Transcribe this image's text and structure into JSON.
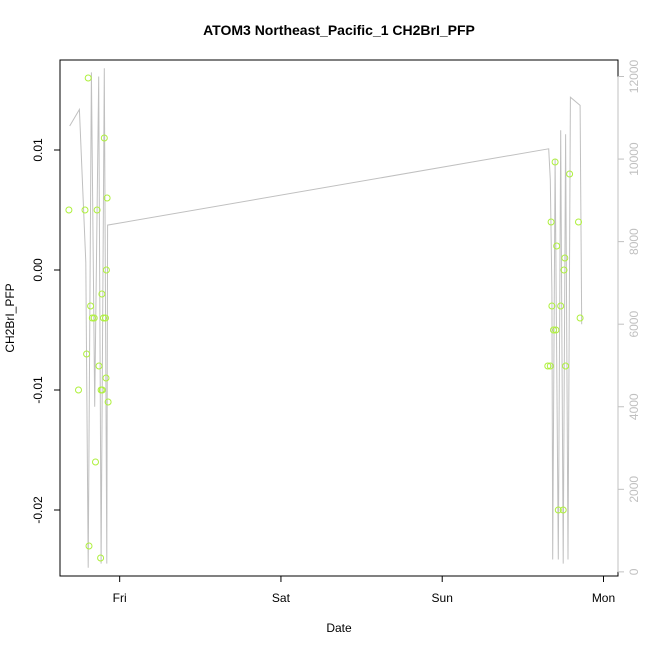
{
  "chart_data": {
    "type": "scatter",
    "title": "ATOM3 Northeast_Pacific_1 CH2BrI_PFP",
    "xlabel": "Date",
    "ylabel": "CH2BrI_PFP",
    "x_ticks": [
      "Fri",
      "Sat",
      "Sun",
      "Mon"
    ],
    "y_ticks": [
      "-0.02",
      "-0.01",
      "0.00",
      "0.01"
    ],
    "y2_ticks": [
      "0",
      "2000",
      "4000",
      "6000",
      "8000",
      "10000",
      "12000"
    ],
    "xlim_days": [
      -0.37,
      3.09
    ],
    "ylim": [
      -0.0255,
      0.0175
    ],
    "y2lim": [
      -100,
      12400
    ],
    "points_color": "#aef03c",
    "altitude_line_color": "#c0c0c0",
    "series": [
      {
        "name": "CH2BrI_PFP",
        "points": [
          {
            "x": -0.315,
            "y": 0.005
          },
          {
            "x": -0.255,
            "y": -0.01
          },
          {
            "x": -0.215,
            "y": 0.005
          },
          {
            "x": -0.205,
            "y": -0.007
          },
          {
            "x": -0.195,
            "y": 0.016
          },
          {
            "x": -0.19,
            "y": -0.023
          },
          {
            "x": -0.18,
            "y": -0.003
          },
          {
            "x": -0.17,
            "y": -0.004
          },
          {
            "x": -0.158,
            "y": -0.004
          },
          {
            "x": -0.15,
            "y": -0.016
          },
          {
            "x": -0.14,
            "y": 0.005
          },
          {
            "x": -0.128,
            "y": -0.008
          },
          {
            "x": -0.118,
            "y": -0.024
          },
          {
            "x": -0.115,
            "y": -0.01
          },
          {
            "x": -0.11,
            "y": -0.002
          },
          {
            "x": -0.108,
            "y": -0.01
          },
          {
            "x": -0.1,
            "y": -0.004
          },
          {
            "x": -0.095,
            "y": 0.011
          },
          {
            "x": -0.088,
            "y": -0.004
          },
          {
            "x": -0.085,
            "y": -0.009
          },
          {
            "x": -0.082,
            "y": 0.0
          },
          {
            "x": -0.078,
            "y": 0.006
          },
          {
            "x": -0.072,
            "y": -0.011
          },
          {
            "x": 2.655,
            "y": -0.008
          },
          {
            "x": 2.67,
            "y": -0.008
          },
          {
            "x": 2.675,
            "y": 0.004
          },
          {
            "x": 2.68,
            "y": -0.003
          },
          {
            "x": 2.69,
            "y": -0.005
          },
          {
            "x": 2.7,
            "y": 0.009
          },
          {
            "x": 2.705,
            "y": -0.005
          },
          {
            "x": 2.71,
            "y": 0.002
          },
          {
            "x": 2.72,
            "y": -0.02
          },
          {
            "x": 2.735,
            "y": -0.003
          },
          {
            "x": 2.75,
            "y": -0.02
          },
          {
            "x": 2.755,
            "y": 0.0
          },
          {
            "x": 2.76,
            "y": 0.001
          },
          {
            "x": 2.765,
            "y": -0.008
          },
          {
            "x": 2.79,
            "y": 0.008
          },
          {
            "x": 2.845,
            "y": 0.004
          },
          {
            "x": 2.855,
            "y": -0.004
          }
        ]
      },
      {
        "name": "altitude",
        "axis": "right",
        "points": [
          {
            "x": -0.31,
            "y": 10800
          },
          {
            "x": -0.25,
            "y": 11200
          },
          {
            "x": -0.21,
            "y": 7500
          },
          {
            "x": -0.195,
            "y": 100
          },
          {
            "x": -0.175,
            "y": 12100
          },
          {
            "x": -0.155,
            "y": 4000
          },
          {
            "x": -0.13,
            "y": 12000
          },
          {
            "x": -0.115,
            "y": 200
          },
          {
            "x": -0.095,
            "y": 12200
          },
          {
            "x": -0.08,
            "y": 200
          },
          {
            "x": -0.075,
            "y": 8400
          },
          {
            "x": 2.66,
            "y": 10250
          },
          {
            "x": 2.67,
            "y": 9500
          },
          {
            "x": 2.68,
            "y": 6800
          },
          {
            "x": 2.685,
            "y": 300
          },
          {
            "x": 2.7,
            "y": 10000
          },
          {
            "x": 2.72,
            "y": 300
          },
          {
            "x": 2.735,
            "y": 10700
          },
          {
            "x": 2.75,
            "y": 200
          },
          {
            "x": 2.765,
            "y": 10600
          },
          {
            "x": 2.78,
            "y": 300
          },
          {
            "x": 2.795,
            "y": 11500
          },
          {
            "x": 2.855,
            "y": 11300
          },
          {
            "x": 2.865,
            "y": 6000
          }
        ]
      }
    ]
  }
}
